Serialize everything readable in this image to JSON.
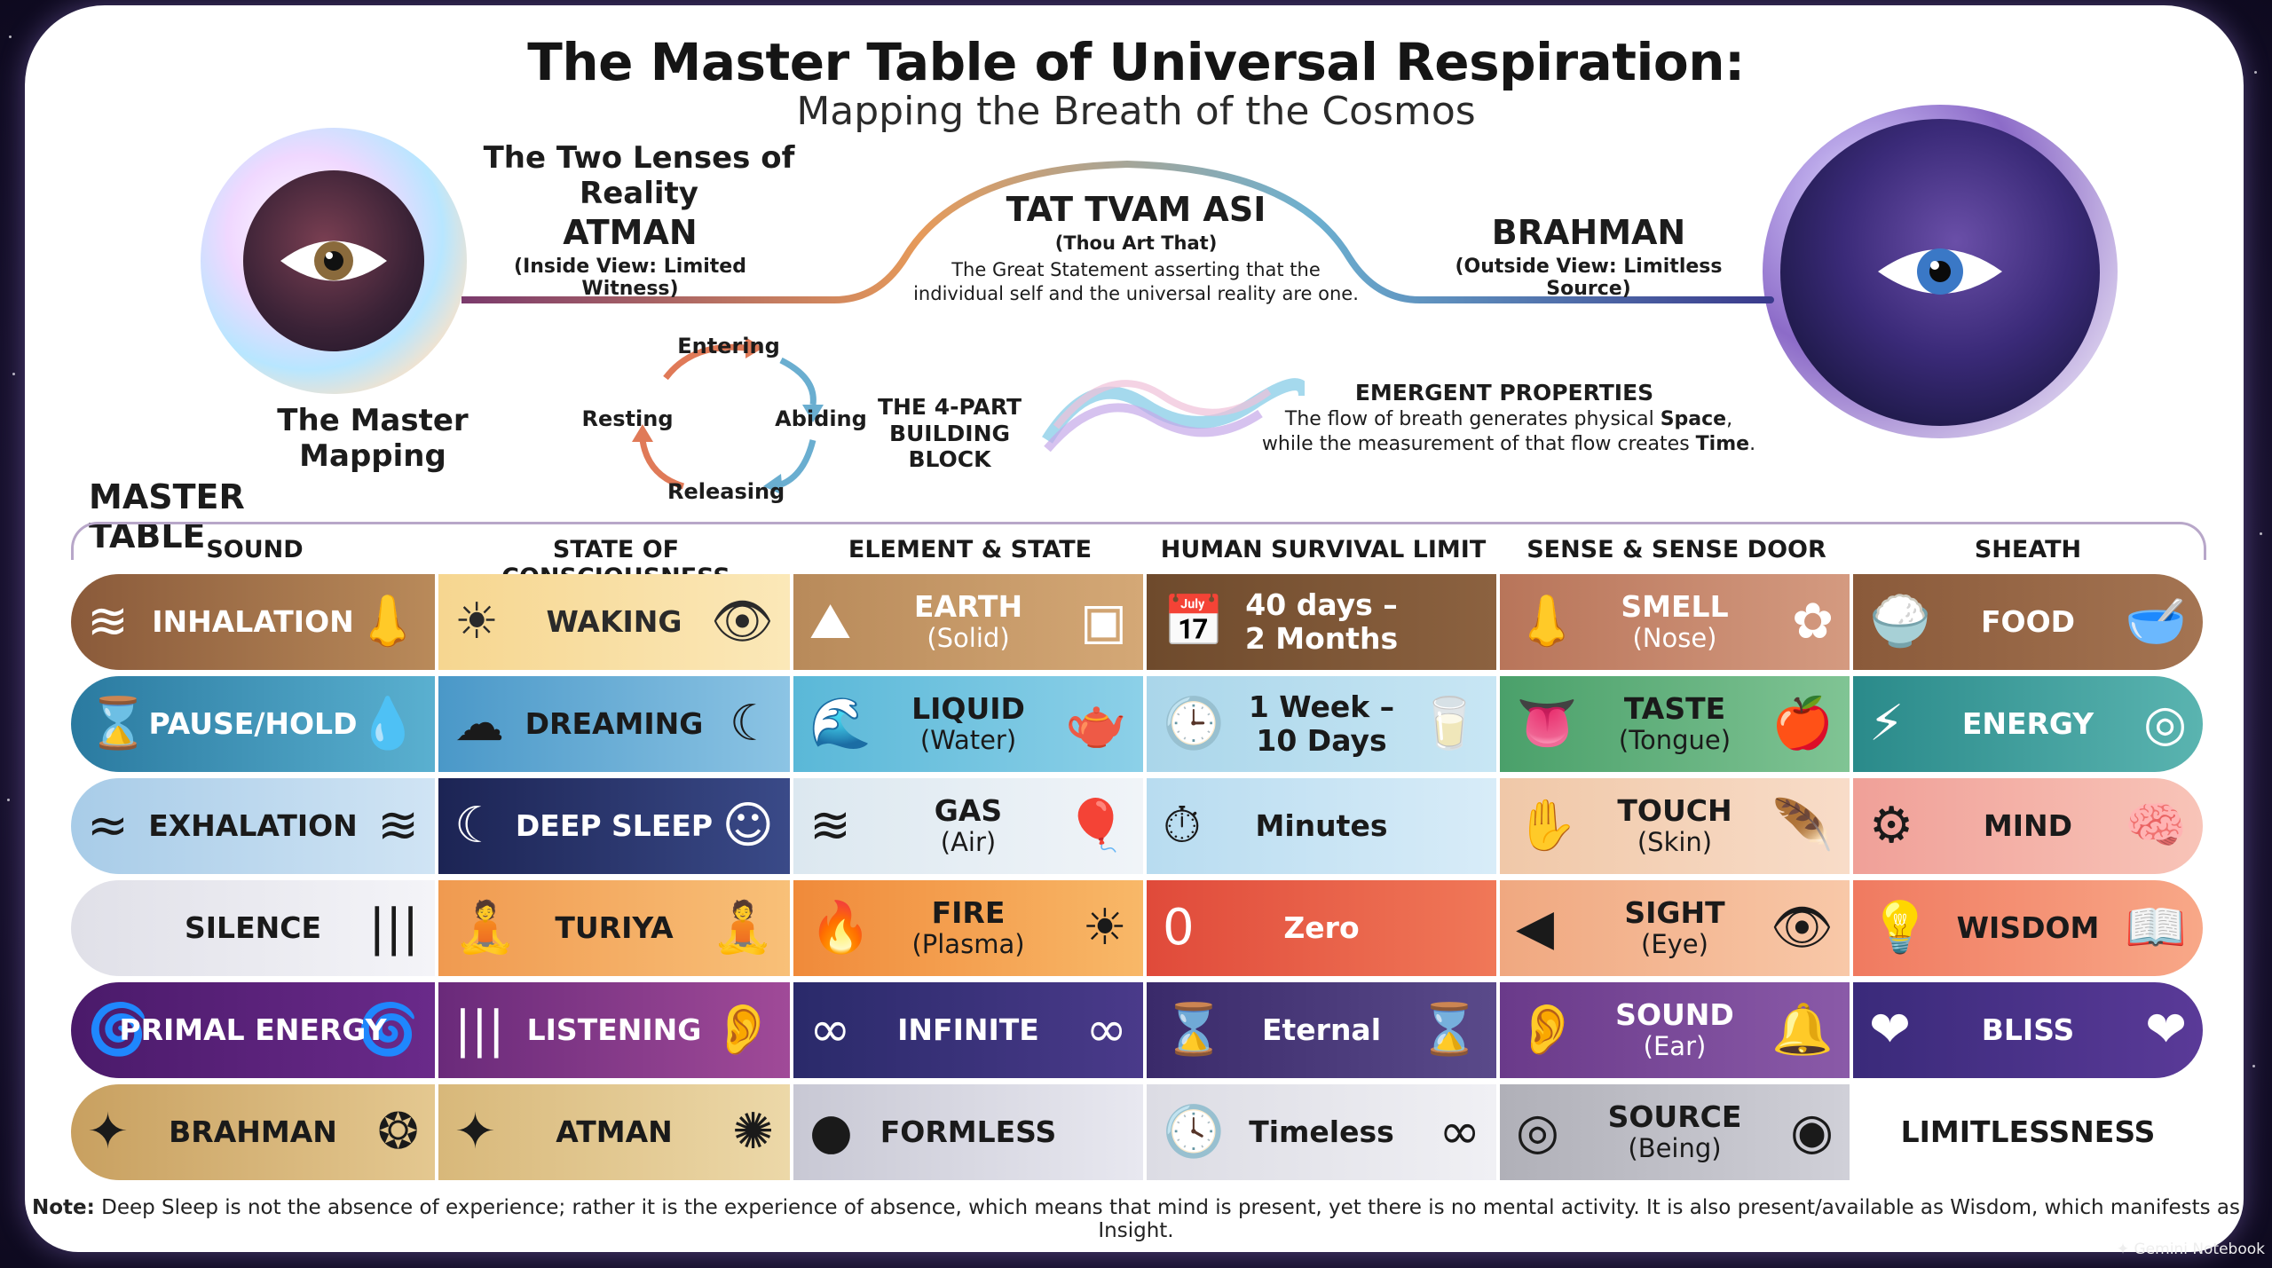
{
  "title": "The Master Table of Universal Respiration:",
  "subtitle": "Mapping the Breath of the Cosmos",
  "lenses": {
    "heading": "The Two Lenses of Reality",
    "atman": {
      "name": "ATMAN",
      "desc": "(Inside View: Limited Witness)"
    },
    "brahman": {
      "name": "BRAHMAN",
      "desc": "(Outside View: Limitless Source)"
    },
    "tat": {
      "name": "TAT TVAM ASI",
      "translation": "(Thou Art That)",
      "desc1": "The Great Statement asserting that the",
      "desc2": "individual self and the universal reality are one."
    }
  },
  "mapping": {
    "heading": "The Master Mapping",
    "cycle": [
      "Entering",
      "Abiding",
      "Releasing",
      "Resting"
    ],
    "block1": "THE 4-PART",
    "block2": "BUILDING BLOCK",
    "emergent_title": "EMERGENT PROPERTIES",
    "emergent_line1_a": "The flow of breath generates physical ",
    "emergent_line1_b": "Space",
    "emergent_line1_c": ",",
    "emergent_line2_a": "while the measurement of that flow creates ",
    "emergent_line2_b": "Time",
    "emergent_line2_c": "."
  },
  "table": {
    "label": "MASTER TABLE",
    "headers": [
      "SOUND",
      "STATE OF CONSCIOUSNESS",
      "ELEMENT & STATE",
      "HUMAN SURVIVAL LIMIT",
      "SENSE & SENSE DOOR",
      "SHEATH"
    ],
    "rows": [
      [
        "INHALATION",
        "WAKING",
        "EARTH|(Solid)",
        "40 days –|2 Months",
        "SMELL|(Nose)",
        "FOOD"
      ],
      [
        "PAUSE/HOLD",
        "DREAMING",
        "LIQUID|(Water)",
        "1 Week –|10 Days",
        "TASTE|(Tongue)",
        "ENERGY"
      ],
      [
        "EXHALATION",
        "DEEP SLEEP",
        "GAS|(Air)",
        "Minutes",
        "TOUCH|(Skin)",
        "MIND"
      ],
      [
        "SILENCE",
        "TURIYA",
        "FIRE|(Plasma)",
        "Zero",
        "SIGHT|(Eye)",
        "WISDOM"
      ],
      [
        "PRIMAL ENERGY",
        "LISTENING",
        "INFINITE",
        "Eternal",
        "SOUND|(Ear)",
        "BLISS"
      ],
      [
        "BRAHMAN",
        "ATMAN",
        "FORMLESS",
        "Timeless",
        "SOURCE|(Being)",
        "LIMITLESSNESS"
      ]
    ]
  },
  "note_label": "Note:",
  "note_text": " Deep Sleep is not the absence of experience; rather it is the experience of absence, which means that mind is present, yet there is no mental activity. It is also present/available as Wisdom, which manifests as Insight.",
  "brand": "Gemini Notebook"
}
